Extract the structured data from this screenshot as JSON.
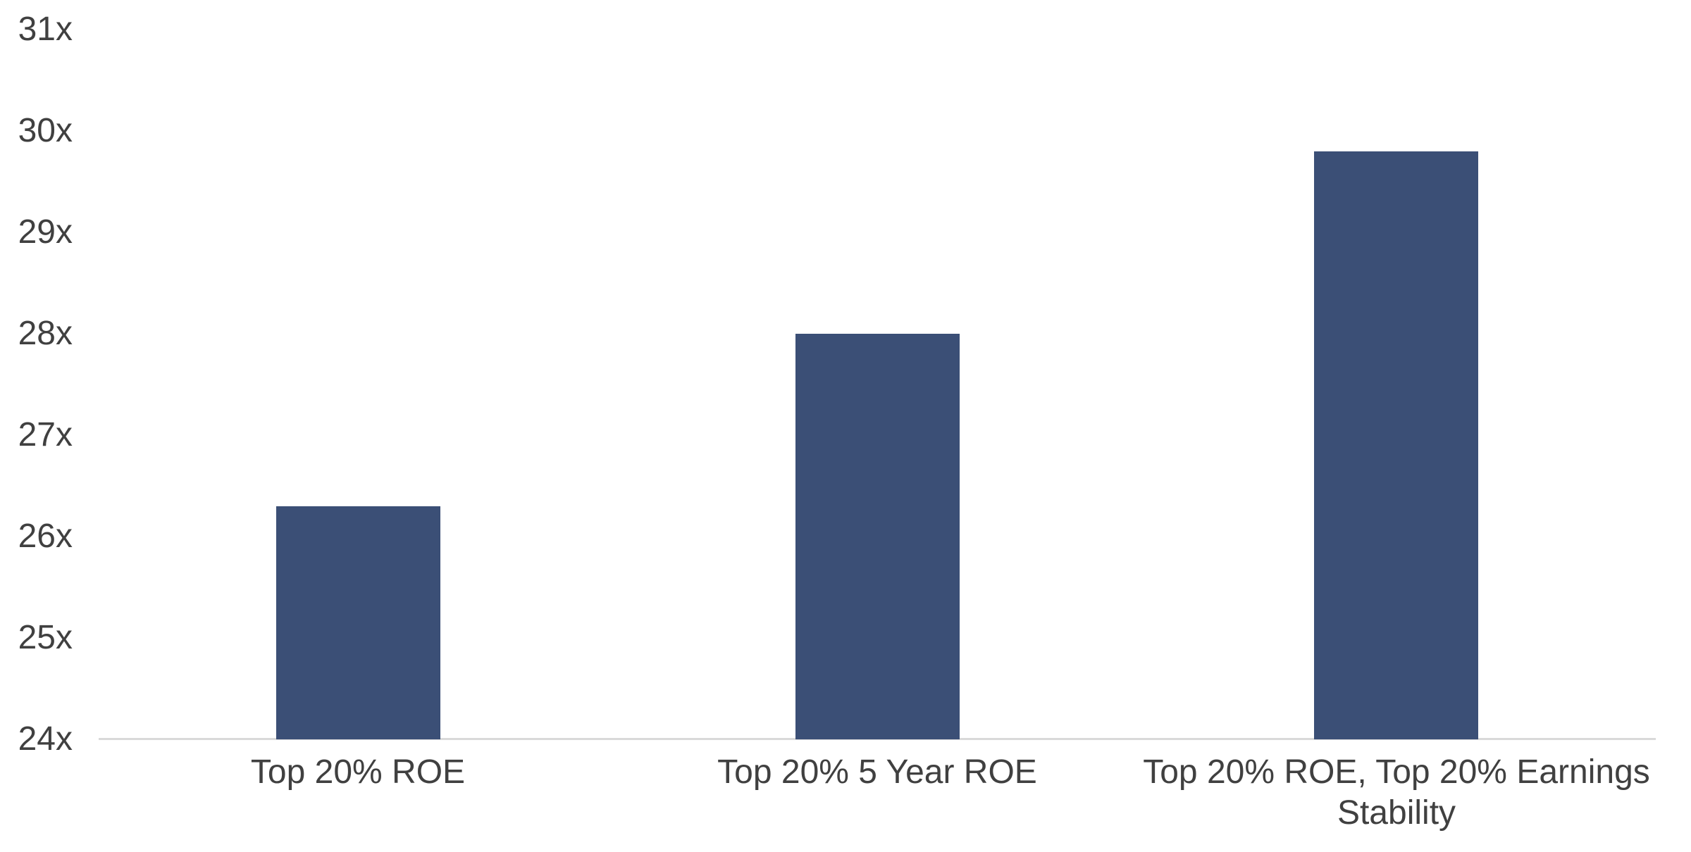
{
  "chart_data": {
    "type": "bar",
    "title": "",
    "xlabel": "",
    "ylabel": "",
    "categories": [
      "Top 20% ROE",
      "Top 20% 5 Year ROE",
      "Top 20% ROE, Top 20% Earnings Stability"
    ],
    "values": [
      26.3,
      28.0,
      29.8
    ],
    "value_suffix": "x",
    "ylim": [
      24,
      31
    ],
    "y_tick_labels": [
      "31x",
      "30x",
      "29x",
      "28x",
      "27x",
      "26x",
      "25x",
      "24x"
    ],
    "grid": false,
    "legend": false,
    "colors": {
      "bar": "#3B4F76",
      "axis_line": "#D9D9D9",
      "text": "#404040",
      "background": "#FFFFFF"
    }
  }
}
